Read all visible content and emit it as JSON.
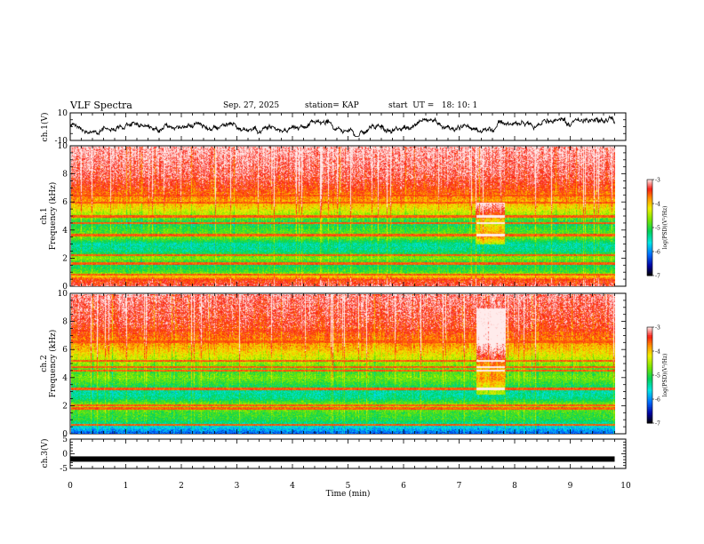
{
  "header": {
    "title": "VLF Spectra",
    "date": "Sep. 27, 2025",
    "station": "station= KAP",
    "start": "start  UT =   18: 10: 1"
  },
  "chart_data": [
    {
      "type": "line",
      "panel": "ch1-waveform",
      "ylabel": "ch.1(V)",
      "ylim": [
        -10,
        10
      ],
      "yticks": [
        "10",
        "-10"
      ],
      "xlim": [
        0,
        10
      ],
      "data_end_min": 9.8,
      "trace": "irregular waveform fluctuating mostly between about -7 V and +8 V"
    },
    {
      "type": "heatmap",
      "panel": "ch1-spectrogram",
      "ylabel": "ch.1\nFrequency (kHz)",
      "ylim": [
        0,
        10
      ],
      "yticks": [
        "0",
        "2",
        "4",
        "6",
        "8",
        "10"
      ],
      "xlim": [
        0,
        10
      ],
      "data_end_min": 9.8,
      "colorbar": {
        "label": "log(PSD)(V²/Hz)",
        "range": [
          -7,
          -3
        ],
        "ticks": [
          "-3",
          "-4",
          "-5",
          "-6",
          "-7"
        ]
      },
      "level_profile": [
        {
          "f": 0,
          "v": -3.3
        },
        {
          "f": 0.5,
          "v": -3.6
        },
        {
          "f": 1.0,
          "v": -4.9
        },
        {
          "f": 1.5,
          "v": -5.2
        },
        {
          "f": 2.0,
          "v": -4.6
        },
        {
          "f": 2.5,
          "v": -5.3
        },
        {
          "f": 3.0,
          "v": -5.4
        },
        {
          "f": 3.5,
          "v": -4.7
        },
        {
          "f": 4.0,
          "v": -4.9
        },
        {
          "f": 4.5,
          "v": -5.2
        },
        {
          "f": 5.0,
          "v": -4.6
        },
        {
          "f": 5.5,
          "v": -4.2
        },
        {
          "f": 6.0,
          "v": -3.9
        },
        {
          "f": 7.0,
          "v": -3.5
        },
        {
          "f": 8.0,
          "v": -3.3
        },
        {
          "f": 9.0,
          "v": -3.2
        },
        {
          "f": 10.0,
          "v": -3.1
        }
      ],
      "lines_khz": [
        0.4,
        0.8,
        1.6,
        2.2,
        3.6,
        3.7,
        4.5,
        5.0,
        6.0,
        6.5
      ],
      "event": {
        "t_start": 7.3,
        "t_end": 7.8,
        "f_low": 3.0,
        "f_high": 6.0
      }
    },
    {
      "type": "heatmap",
      "panel": "ch2-spectrogram",
      "ylabel": "ch.2\nFrequency (kHz)",
      "ylim": [
        0,
        10
      ],
      "yticks": [
        "0",
        "2",
        "4",
        "6",
        "8",
        "10"
      ],
      "xlim": [
        0,
        10
      ],
      "data_end_min": 9.8,
      "colorbar": {
        "label": "log(PSD)(V²/Hz)",
        "range": [
          -7,
          -3
        ],
        "ticks": [
          "-3",
          "-4",
          "-5",
          "-6",
          "-7"
        ]
      },
      "level_profile": [
        {
          "f": 0,
          "v": -6.2
        },
        {
          "f": 0.5,
          "v": -5.6
        },
        {
          "f": 1.0,
          "v": -5.0
        },
        {
          "f": 1.5,
          "v": -4.9
        },
        {
          "f": 2.0,
          "v": -4.5
        },
        {
          "f": 2.5,
          "v": -5.3
        },
        {
          "f": 3.0,
          "v": -5.4
        },
        {
          "f": 3.5,
          "v": -5.0
        },
        {
          "f": 4.0,
          "v": -4.7
        },
        {
          "f": 4.5,
          "v": -4.9
        },
        {
          "f": 5.0,
          "v": -4.6
        },
        {
          "f": 6.0,
          "v": -4.0
        },
        {
          "f": 7.0,
          "v": -3.6
        },
        {
          "f": 8.0,
          "v": -3.4
        },
        {
          "f": 9.0,
          "v": -3.3
        },
        {
          "f": 10.0,
          "v": -3.2
        }
      ],
      "lines_khz": [
        0.6,
        1.8,
        2.0,
        3.2,
        4.5,
        4.8,
        5.2,
        6.6,
        7.4
      ],
      "event": {
        "t_start": 7.3,
        "t_end": 7.8,
        "f_low": 2.8,
        "f_high": 9.0
      }
    },
    {
      "type": "line",
      "panel": "ch3-waveform",
      "ylabel": "ch.3(V)",
      "ylim": [
        -5,
        5
      ],
      "yticks": [
        "5",
        "0",
        "-5"
      ],
      "xlim": [
        0,
        10
      ],
      "data_end_min": 9.8,
      "level_v": -1.8,
      "xlabel": "Time (min)",
      "xticks": [
        "0",
        "1",
        "2",
        "3",
        "4",
        "5",
        "6",
        "7",
        "8",
        "9",
        "10"
      ]
    }
  ]
}
